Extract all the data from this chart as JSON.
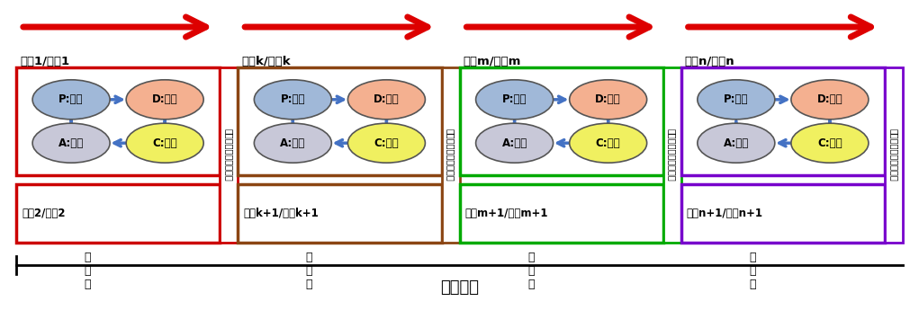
{
  "title": "時間経過",
  "background_color": "#ffffff",
  "arrow_color": "#dd0000",
  "pdca_arrow_color": "#4472c4",
  "iterations": [
    {
      "label": "機能1/部位1",
      "box_color": "#cc0000",
      "sub_label": "機能2/部位2"
    },
    {
      "label": "機能k/部位k",
      "box_color": "#8B4513",
      "sub_label": "機能k+1/部位k+1"
    },
    {
      "label": "機能m/部位m",
      "box_color": "#00aa00",
      "sub_label": "機能m+1/部位m+1"
    },
    {
      "label": "機能n/部位n",
      "box_color": "#7700cc",
      "sub_label": "機能n+1/部位n+1"
    }
  ],
  "regression_label": "リグレッションテスト",
  "p_label": "P:設計",
  "d_label": "D:試験",
  "c_label": "C:調査",
  "a_label": "A:改善",
  "p_color": "#a0b8d8",
  "d_color": "#f4b090",
  "c_color": "#f0f060",
  "a_color": "#c8c8d8",
  "dots": "・\n・\n・"
}
